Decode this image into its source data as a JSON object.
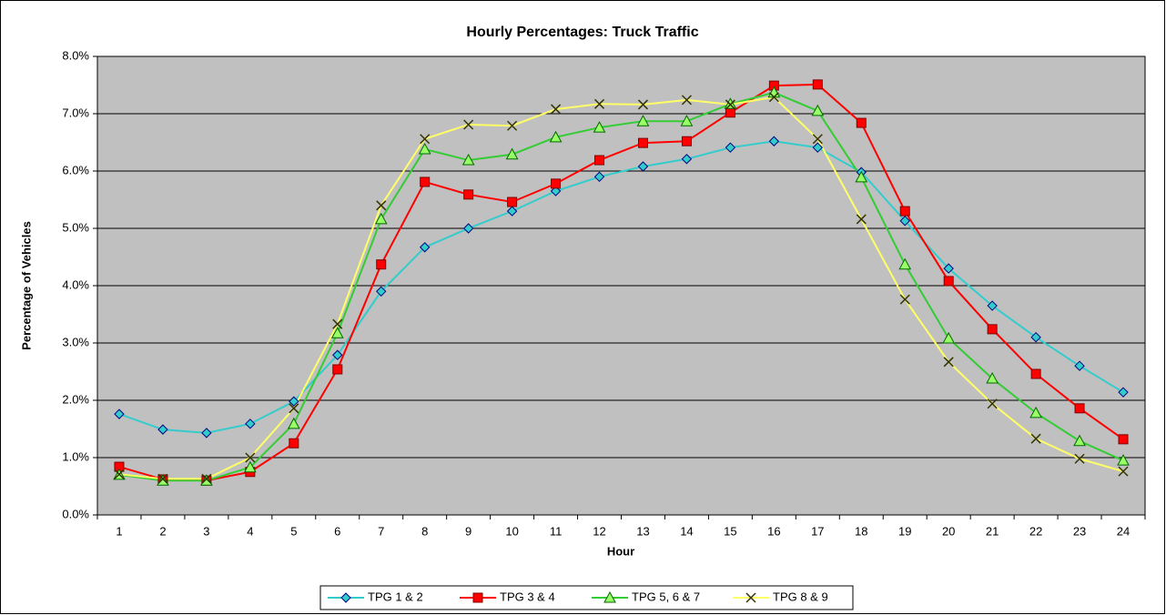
{
  "chart_data": {
    "type": "line",
    "title": "Hourly Percentages: Truck Traffic",
    "xlabel": "Hour",
    "ylabel": "Percentage of Vehicles",
    "categories": [
      1,
      2,
      3,
      4,
      5,
      6,
      7,
      8,
      9,
      10,
      11,
      12,
      13,
      14,
      15,
      16,
      17,
      18,
      19,
      20,
      21,
      22,
      23,
      24
    ],
    "series": [
      {
        "name": "TPG 1 & 2",
        "color": "#33cccc",
        "marker": "diamond",
        "values": [
          1.76,
          1.49,
          1.43,
          1.59,
          1.98,
          2.79,
          3.9,
          4.67,
          5.0,
          5.3,
          5.65,
          5.9,
          6.08,
          6.21,
          6.41,
          6.52,
          6.41,
          5.98,
          5.13,
          4.3,
          3.65,
          3.1,
          2.6,
          2.14
        ]
      },
      {
        "name": "TPG 3 & 4",
        "color": "#ff0000",
        "marker": "square",
        "values": [
          0.84,
          0.62,
          0.6,
          0.75,
          1.25,
          2.54,
          4.37,
          5.81,
          5.59,
          5.46,
          5.78,
          6.19,
          6.49,
          6.52,
          7.02,
          7.49,
          7.51,
          6.84,
          5.3,
          4.08,
          3.24,
          2.46,
          1.86,
          1.32
        ]
      },
      {
        "name": "TPG 5, 6 & 7",
        "color": "#33cc33",
        "marker": "triangle",
        "values": [
          0.7,
          0.6,
          0.6,
          0.83,
          1.59,
          3.17,
          5.16,
          6.38,
          6.19,
          6.29,
          6.59,
          6.76,
          6.87,
          6.87,
          7.17,
          7.37,
          7.05,
          5.89,
          4.37,
          3.08,
          2.38,
          1.78,
          1.29,
          0.95
        ]
      },
      {
        "name": "TPG 8 & 9",
        "color": "#ffff66",
        "marker": "x",
        "values": [
          0.71,
          0.63,
          0.63,
          1.0,
          1.86,
          3.33,
          5.4,
          6.56,
          6.81,
          6.79,
          7.08,
          7.17,
          7.16,
          7.24,
          7.16,
          7.29,
          6.56,
          5.16,
          3.76,
          2.67,
          1.94,
          1.33,
          0.98,
          0.76
        ]
      }
    ],
    "ylim": [
      0,
      8
    ],
    "yticks": [
      {
        "value": 0,
        "label": "0.0%"
      },
      {
        "value": 1,
        "label": "1.0%"
      },
      {
        "value": 2,
        "label": "2.0%"
      },
      {
        "value": 3,
        "label": "3.0%"
      },
      {
        "value": 4,
        "label": "4.0%"
      },
      {
        "value": 5,
        "label": "5.0%"
      },
      {
        "value": 6,
        "label": "6.0%"
      },
      {
        "value": 7,
        "label": "7.0%"
      },
      {
        "value": 8,
        "label": "8.0%"
      }
    ],
    "grid": true,
    "legend": "bottom"
  }
}
